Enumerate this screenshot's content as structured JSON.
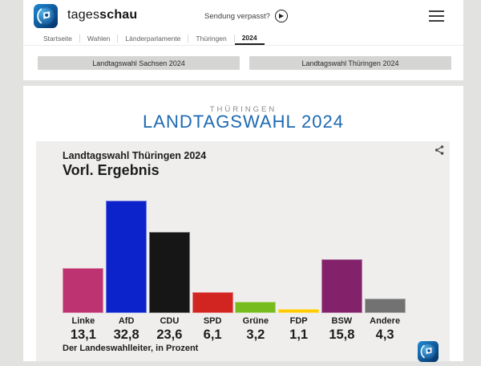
{
  "header": {
    "brand": {
      "regular": "tages",
      "bold": "schau"
    },
    "watch_link": "Sendung verpasst?",
    "breadcrumb": [
      "Startseite",
      "Wahlen",
      "Länderparlamente",
      "Thüringen",
      "2024"
    ],
    "buttons": [
      "Landtagswahl Sachsen 2024",
      "Landtagswahl Thüringen 2024"
    ]
  },
  "page": {
    "kicker": "THÜRINGEN",
    "title": "LANDTAGSWAHL 2024",
    "title_color": "#1c69b2"
  },
  "chart_data": {
    "type": "bar",
    "title": "Landtagswahl Thüringen 2024",
    "subtitle": "Vorl. Ergebnis",
    "source": "Der Landeswahlleiter, in Prozent",
    "unit": "Prozent",
    "categories": [
      "Linke",
      "AfD",
      "CDU",
      "SPD",
      "Grüne",
      "FDP",
      "BSW",
      "Andere"
    ],
    "values": [
      13.1,
      32.8,
      23.6,
      6.1,
      3.2,
      1.1,
      15.8,
      4.3
    ],
    "value_labels": [
      "13,1",
      "32,8",
      "23,6",
      "6,1",
      "3,2",
      "1,1",
      "15,8",
      "4,3"
    ],
    "colors": {
      "Linke": "#bd3270",
      "AfD": "#0c23cc",
      "CDU": "#161616",
      "SPD": "#d22420",
      "Grüne": "#77bc1f",
      "FDP": "#fdcb00",
      "BSW": "#83216b",
      "Andere": "#727272"
    },
    "ylim": [
      0,
      33
    ],
    "grid": false,
    "legend": false
  }
}
